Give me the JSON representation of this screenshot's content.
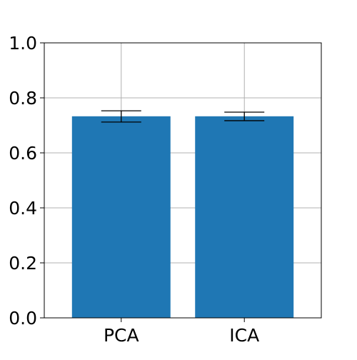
{
  "chart_data": {
    "type": "bar",
    "categories": [
      "PCA",
      "ICA"
    ],
    "values": [
      0.733,
      0.733
    ],
    "errors": [
      {
        "low": 0.712,
        "high": 0.753
      },
      {
        "low": 0.717,
        "high": 0.748
      }
    ],
    "title": "",
    "xlabel": "",
    "ylabel": "",
    "ylim": [
      0,
      1.0
    ],
    "yticks": [
      "0.0",
      "0.2",
      "0.4",
      "0.6",
      "0.8",
      "1.0"
    ],
    "grid": true,
    "bar_color": "#1f77b4",
    "error_color": "#000000",
    "grid_color": "#b0b0b0"
  }
}
